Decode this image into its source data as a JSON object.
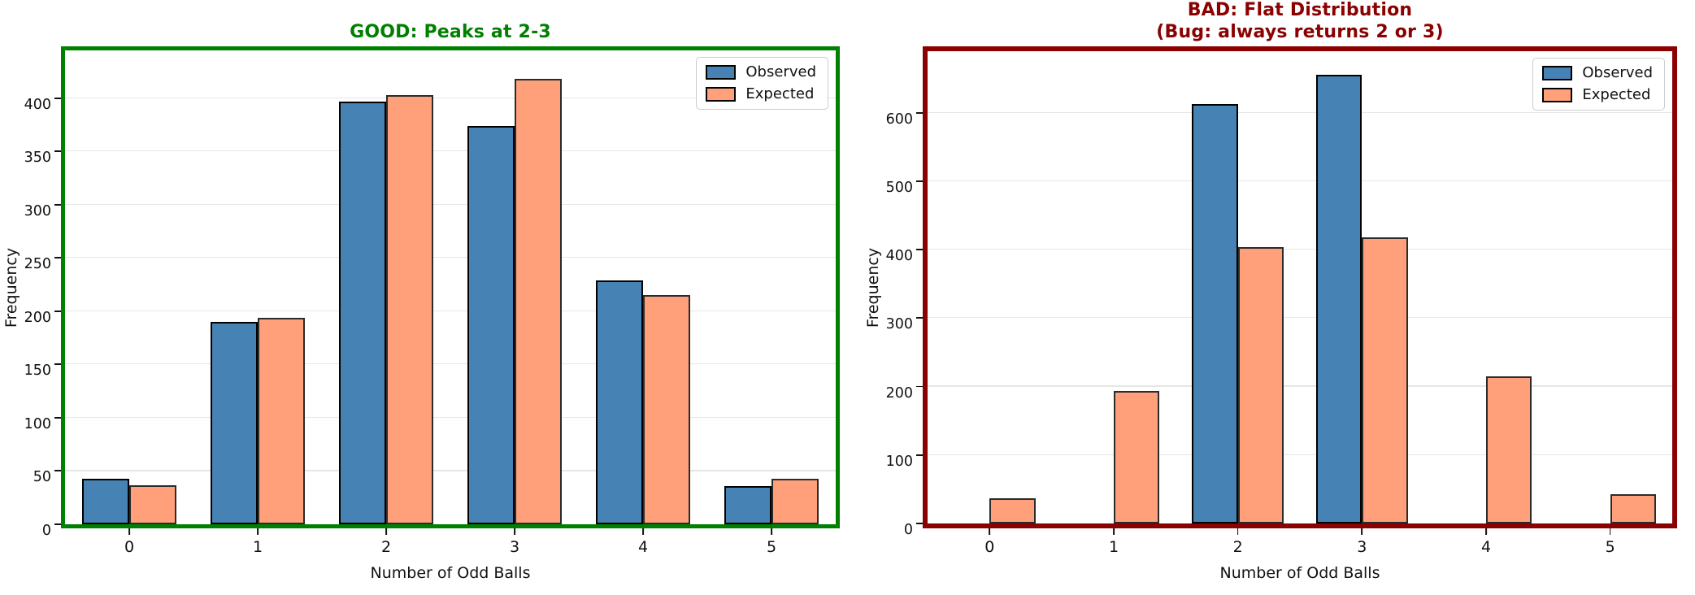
{
  "figure": {
    "background": "#ffffff"
  },
  "chart_data": [
    {
      "type": "bar",
      "title": "GOOD: Peaks at 2-3",
      "title_color": "#008000",
      "frame_color": "#008000",
      "xlabel": "Number of Odd Balls",
      "ylabel": "Frequency",
      "categories": [
        "0",
        "1",
        "2",
        "3",
        "4",
        "5"
      ],
      "series": [
        {
          "name": "Observed",
          "fill": "#4682B4",
          "edge": "#000000",
          "values": [
            43,
            190,
            397,
            374,
            229,
            36
          ]
        },
        {
          "name": "Expected",
          "fill": "#FFA07A",
          "edge": "#2b2b2b",
          "values": [
            37,
            194,
            403,
            418,
            215,
            43
          ]
        }
      ],
      "yticks": [
        0,
        50,
        100,
        150,
        200,
        250,
        300,
        350,
        400
      ],
      "ylim": [
        0,
        445
      ],
      "grid": true,
      "legend": {
        "labels": [
          "Observed",
          "Expected"
        ],
        "position": "top-right"
      }
    },
    {
      "type": "bar",
      "title": "BAD: Flat Distribution",
      "title_line2": "(Bug: always returns 2 or 3)",
      "title_color": "#8B0000",
      "frame_color": "#8B0000",
      "xlabel": "Number of Odd Balls",
      "ylabel": "Frequency",
      "categories": [
        "0",
        "1",
        "2",
        "3",
        "4",
        "5"
      ],
      "series": [
        {
          "name": "Observed",
          "fill": "#4682B4",
          "edge": "#000000",
          "values": [
            0,
            0,
            613,
            655,
            0,
            0
          ]
        },
        {
          "name": "Expected",
          "fill": "#FFA07A",
          "edge": "#2b2b2b",
          "values": [
            37,
            194,
            404,
            418,
            215,
            43
          ]
        }
      ],
      "yticks": [
        0,
        100,
        200,
        300,
        400,
        500,
        600
      ],
      "ylim": [
        0,
        690
      ],
      "grid": true,
      "legend": {
        "labels": [
          "Observed",
          "Expected"
        ],
        "position": "top-right"
      }
    }
  ]
}
